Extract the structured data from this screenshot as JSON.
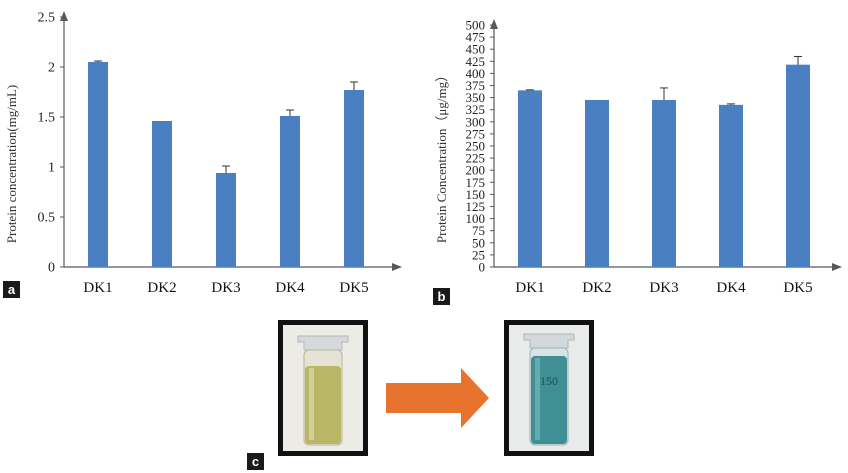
{
  "panels": {
    "a": "a",
    "b": "b",
    "c": "c"
  },
  "colors": {
    "bar": "#4a7fc1",
    "axis": "#595959",
    "arrow": "#e8732e",
    "frame": "#111111",
    "tube_before": "#b9b766",
    "tube_after": "#3f8f95"
  },
  "chart_data": [
    {
      "type": "bar",
      "title": "",
      "xlabel": "",
      "ylabel": "Protein concentration(mg/mL)",
      "categories": [
        "DK1",
        "DK2",
        "DK3",
        "DK4",
        "DK5"
      ],
      "values": [
        2.05,
        1.46,
        0.94,
        1.51,
        1.77
      ],
      "errors": [
        0.01,
        0.0,
        0.07,
        0.06,
        0.08
      ],
      "ylim": [
        0,
        2.5
      ],
      "yticks": [
        0,
        0.5,
        1,
        1.5,
        2,
        2.5
      ],
      "ytick_labels": [
        "0",
        "0.5",
        "1",
        "1.5",
        "2",
        "2.5"
      ],
      "grid": false
    },
    {
      "type": "bar",
      "title": "",
      "xlabel": "",
      "ylabel": "Protein Concentration（μg/mg）",
      "categories": [
        "DK1",
        "DK2",
        "DK3",
        "DK4",
        "DK5"
      ],
      "values": [
        365,
        345,
        345,
        335,
        418
      ],
      "errors": [
        1,
        0,
        25,
        2,
        17
      ],
      "ylim": [
        0,
        500
      ],
      "yticks": [
        0,
        25,
        50,
        75,
        100,
        125,
        150,
        175,
        200,
        225,
        250,
        275,
        300,
        325,
        350,
        375,
        400,
        425,
        450,
        475,
        500
      ],
      "ytick_labels": [
        "0",
        "25",
        "50",
        "75",
        "100",
        "125",
        "150",
        "175",
        "200",
        "225",
        "250",
        "275",
        "300",
        "325",
        "350",
        "375",
        "400",
        "425",
        "450",
        "475",
        "500"
      ],
      "grid": false
    }
  ],
  "photos": {
    "before_label": "",
    "after_label": "150"
  }
}
